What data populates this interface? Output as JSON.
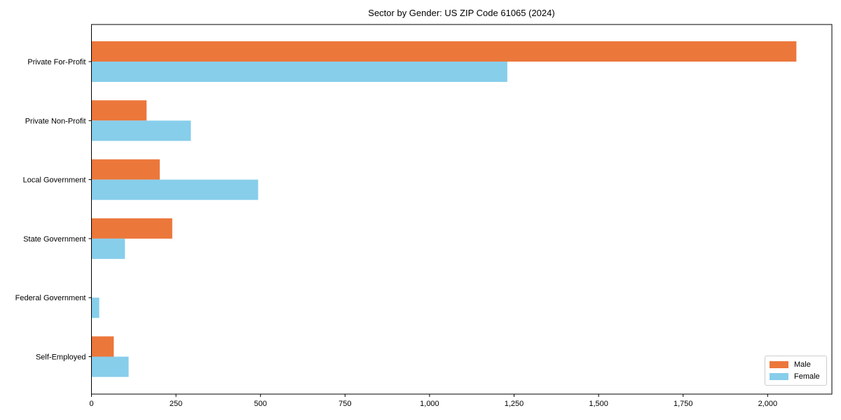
{
  "chart_data": {
    "type": "bar",
    "orientation": "horizontal",
    "title": "Sector by Gender: US ZIP Code 61065 (2024)",
    "categories": [
      "Private For-Profit",
      "Private Non-Profit",
      "Local Government",
      "State Government",
      "Federal Government",
      "Self-Employed"
    ],
    "series": [
      {
        "name": "Male",
        "color": "#ec773b",
        "values": [
          2085,
          163,
          202,
          239,
          0,
          66
        ]
      },
      {
        "name": "Female",
        "color": "#87ceeb",
        "values": [
          1230,
          294,
          493,
          99,
          23,
          110
        ]
      }
    ],
    "xlabel": "",
    "ylabel": "",
    "xlim": [
      0,
      2190
    ],
    "x_ticks": [
      0,
      250,
      500,
      750,
      1000,
      1250,
      1500,
      1750,
      2000
    ],
    "x_tick_labels": [
      "0",
      "250",
      "500",
      "750",
      "1,000",
      "1,250",
      "1,500",
      "1,750",
      "2,000"
    ],
    "grid": false,
    "legend": {
      "position": "lower right",
      "entries": [
        "Male",
        "Female"
      ]
    },
    "colors": {
      "male": "#ec773b",
      "female": "#87ceeb",
      "spine": "#000000",
      "legend_border": "#cccccc",
      "text": "#000000"
    }
  }
}
